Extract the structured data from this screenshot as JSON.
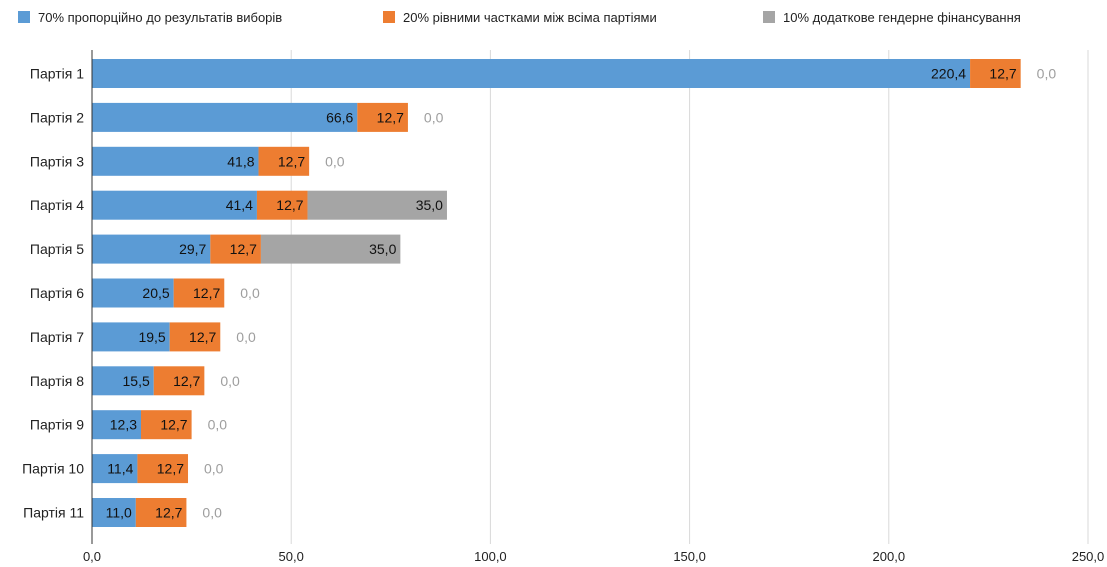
{
  "chart_data": {
    "type": "bar",
    "orientation": "horizontal",
    "stacked": true,
    "categories": [
      "Партія 1",
      "Партія 2",
      "Партія 3",
      "Партія 4",
      "Партія 5",
      "Партія 6",
      "Партія 7",
      "Партія 8",
      "Партія 9",
      "Партія 10",
      "Партія 11"
    ],
    "series": [
      {
        "name": "70% пропорційно до результатів виборів",
        "color": "#5b9bd5",
        "values": [
          220.4,
          66.6,
          41.8,
          41.4,
          29.7,
          20.5,
          19.5,
          15.5,
          12.3,
          11.4,
          11.0
        ],
        "labels": [
          "220,4",
          "66,6",
          "41,8",
          "41,4",
          "29,7",
          "20,5",
          "19,5",
          "15,5",
          "12,3",
          "11,4",
          "11,0"
        ]
      },
      {
        "name": "20% рівними частками між всіма партіями",
        "color": "#ed7d31",
        "values": [
          12.7,
          12.7,
          12.7,
          12.7,
          12.7,
          12.7,
          12.7,
          12.7,
          12.7,
          12.7,
          12.7
        ],
        "labels": [
          "12,7",
          "12,7",
          "12,7",
          "12,7",
          "12,7",
          "12,7",
          "12,7",
          "12,7",
          "12,7",
          "12,7",
          "12,7"
        ]
      },
      {
        "name": "10% додаткове гендерне фінансування",
        "color": "#a5a5a5",
        "values": [
          0,
          0,
          0,
          35.0,
          35.0,
          0,
          0,
          0,
          0,
          0,
          0
        ],
        "labels": [
          "0,0",
          "0,0",
          "0,0",
          "35,0",
          "35,0",
          "0,0",
          "0,0",
          "0,0",
          "0,0",
          "0,0",
          "0,0"
        ]
      }
    ],
    "xlim": [
      0,
      250
    ],
    "xticks": [
      0,
      50,
      100,
      150,
      200,
      250
    ],
    "xtick_labels": [
      "0,0",
      "50,0",
      "100,0",
      "150,0",
      "200,0",
      "250,0"
    ],
    "grid": true,
    "legend_position": "top"
  }
}
